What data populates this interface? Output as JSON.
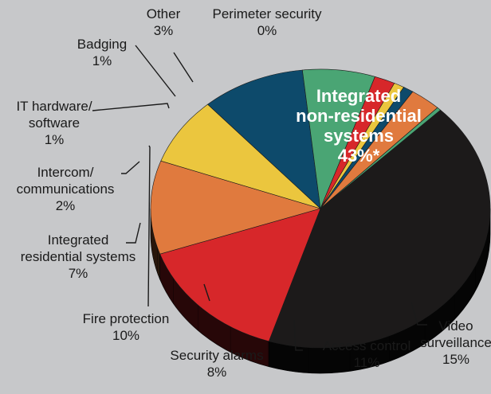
{
  "chart_data": {
    "type": "pie",
    "title": "",
    "style": "3d-extruded",
    "footnote_marker": "*",
    "slices": [
      {
        "name_lines": [
          "Integrated",
          "non-residential",
          "systems"
        ],
        "value_label": "43%",
        "value": 43,
        "color": "#1c1a1a"
      },
      {
        "name_lines": [
          "Video",
          "surveillance"
        ],
        "value_label": "15%",
        "value": 15,
        "color": "#d7272a"
      },
      {
        "name_lines": [
          "Access control"
        ],
        "value_label": "11%",
        "value": 11,
        "color": "#e07a3e"
      },
      {
        "name_lines": [
          "Security alarms"
        ],
        "value_label": "8%",
        "value": 8,
        "color": "#ebc63e"
      },
      {
        "name_lines": [
          "Fire protection"
        ],
        "value_label": "10%",
        "value": 10,
        "color": "#0d4a6b"
      },
      {
        "name_lines": [
          "Integrated",
          "residential systems"
        ],
        "value_label": "7%",
        "value": 7,
        "color": "#4aa574"
      },
      {
        "name_lines": [
          "Intercom/",
          "communications"
        ],
        "value_label": "2%",
        "value": 2,
        "color": "#d7272a"
      },
      {
        "name_lines": [
          "IT hardware/",
          "software"
        ],
        "value_label": "1%",
        "value": 1,
        "color": "#ebc63e"
      },
      {
        "name_lines": [
          "Badging"
        ],
        "value_label": "1%",
        "value": 1,
        "color": "#0d4a6b"
      },
      {
        "name_lines": [
          "Other"
        ],
        "value_label": "3%",
        "value": 3,
        "color": "#e07a3e"
      },
      {
        "name_lines": [
          "Perimeter security"
        ],
        "value_label": "0%",
        "value": 0,
        "color": "#4aa574"
      }
    ]
  }
}
